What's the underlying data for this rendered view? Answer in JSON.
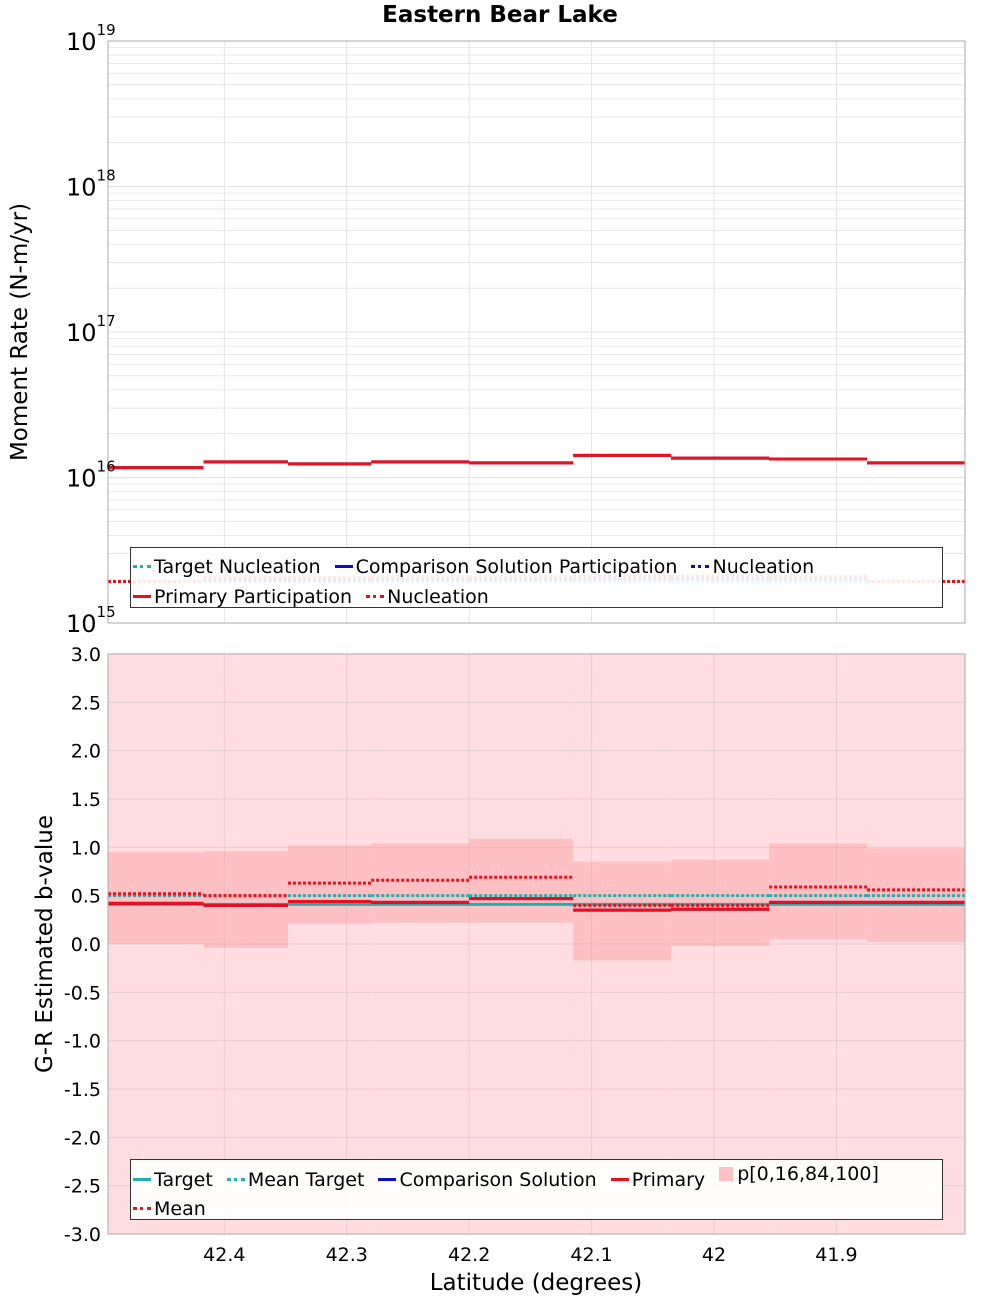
{
  "title": "Eastern Bear Lake",
  "xlabel": "Latitude (degrees)",
  "chart_data": [
    {
      "type": "line",
      "title": "Eastern Bear Lake",
      "ylabel": "Moment Rate (N-m/yr)",
      "yscale": "log",
      "ylim": [
        1000000000000000.0,
        1e+19
      ],
      "xlim": [
        42.495,
        41.795
      ],
      "x_reversed": true,
      "x_ticks": [
        42.4,
        42.3,
        42.2,
        42.1,
        42,
        41.9
      ],
      "y_tick_labels": [
        "15",
        "16",
        "17",
        "18",
        "19"
      ],
      "grid": true,
      "legend_position": "bottom",
      "bin_edges": [
        42.495,
        42.417,
        42.348,
        42.28,
        42.2,
        42.115,
        42.035,
        41.955,
        41.875,
        41.795
      ],
      "series": [
        {
          "name": "Target Nucleation",
          "style": "dotted",
          "color": "#20b0b0",
          "values": [
            1930000000000000.0,
            1930000000000000.0,
            1930000000000000.0,
            1930000000000000.0,
            1930000000000000.0,
            1930000000000000.0,
            1930000000000000.0,
            1930000000000000.0,
            1930000000000000.0
          ]
        },
        {
          "name": "Comparison Solution Participation",
          "style": "solid",
          "color": "#1010c8",
          "values": [
            1.17e+16,
            1.28e+16,
            1.24e+16,
            1.28e+16,
            1.26e+16,
            1.42e+16,
            1.36e+16,
            1.34e+16,
            1.26e+16
          ]
        },
        {
          "name": "Nucleation",
          "style": "dotted",
          "color": "#101090",
          "values": [
            1930000000000000.0,
            1980000000000000.0,
            1980000000000000.0,
            2000000000000000.0,
            2000000000000000.0,
            2020000000000000.0,
            2020000000000000.0,
            2020000000000000.0,
            1930000000000000.0
          ]
        },
        {
          "name": "Primary Participation",
          "style": "solid",
          "color": "#e8101c",
          "values": [
            1.17e+16,
            1.28e+16,
            1.24e+16,
            1.28e+16,
            1.26e+16,
            1.42e+16,
            1.36e+16,
            1.34e+16,
            1.26e+16
          ]
        },
        {
          "name": "Nucleation",
          "style": "dotted",
          "color": "#e8101c",
          "values": [
            1930000000000000.0,
            2050000000000000.0,
            2050000000000000.0,
            2080000000000000.0,
            2080000000000000.0,
            2100000000000000.0,
            2100000000000000.0,
            2080000000000000.0,
            1930000000000000.0
          ]
        }
      ]
    },
    {
      "type": "line",
      "ylabel": "G-R Estimated b-value",
      "ylim": [
        -3.0,
        3.0
      ],
      "xlim": [
        42.495,
        41.795
      ],
      "x_reversed": true,
      "x_ticks": [
        42.4,
        42.3,
        42.2,
        42.1,
        42,
        41.9
      ],
      "x_tick_labels": [
        "42.4",
        "42.3",
        "42.2",
        "42.1",
        "42",
        "41.9"
      ],
      "y_tick_labels": [
        "3.0",
        "2.5",
        "2.0",
        "1.5",
        "1.0",
        "0.5",
        "0.0",
        "-0.5",
        "-1.0",
        "-1.5",
        "-2.0",
        "-2.5",
        "-3.0"
      ],
      "grid": true,
      "legend_position": "bottom",
      "bin_edges": [
        42.495,
        42.417,
        42.348,
        42.28,
        42.2,
        42.115,
        42.035,
        41.955,
        41.875,
        41.795
      ],
      "bands": {
        "name": "p[0,16,84,100]",
        "color": "#ffc0c4",
        "p0": [
          -3.0,
          -3.0,
          -3.0,
          -3.0,
          -3.0,
          -3.0,
          -3.0,
          -3.0,
          -3.0
        ],
        "p16": [
          0.0,
          -0.04,
          0.21,
          0.22,
          0.22,
          -0.17,
          -0.02,
          0.05,
          0.02
        ],
        "p84": [
          0.95,
          0.96,
          1.02,
          1.04,
          1.09,
          0.85,
          0.87,
          1.04,
          0.99
        ],
        "p100": [
          3.0,
          3.0,
          3.0,
          3.0,
          3.0,
          3.0,
          3.0,
          3.0,
          3.0
        ]
      },
      "series": [
        {
          "name": "Target",
          "style": "solid",
          "color": "#20b0b0",
          "values": [
            0.41,
            0.41,
            0.41,
            0.41,
            0.41,
            0.41,
            0.41,
            0.41,
            0.41
          ]
        },
        {
          "name": "Mean Target",
          "style": "dotted",
          "color": "#20b0b0",
          "values": [
            0.5,
            0.5,
            0.5,
            0.5,
            0.5,
            0.5,
            0.5,
            0.5,
            0.5
          ]
        },
        {
          "name": "Comparison Solution",
          "style": "solid",
          "color": "#1010c8",
          "values": [
            0.42,
            0.4,
            0.44,
            0.43,
            0.47,
            0.35,
            0.36,
            0.43,
            0.43
          ]
        },
        {
          "name": "Primary",
          "style": "solid",
          "color": "#e8101c",
          "values": [
            0.42,
            0.4,
            0.44,
            0.43,
            0.47,
            0.35,
            0.36,
            0.43,
            0.43
          ]
        },
        {
          "name": "Mean",
          "style": "dotted",
          "color": "#e8101c",
          "values": [
            0.52,
            0.5,
            0.63,
            0.66,
            0.69,
            0.4,
            0.4,
            0.59,
            0.56
          ]
        }
      ]
    }
  ],
  "legend1": {
    "row1": [
      "Target Nucleation",
      "Comparison Solution Participation",
      "Nucleation"
    ],
    "row2": [
      "Primary Participation",
      "Nucleation"
    ]
  },
  "legend2": {
    "row1": [
      "Target",
      "Mean Target",
      "Comparison Solution",
      "Primary",
      "p[0,16,84,100]"
    ],
    "row2": [
      "Mean"
    ]
  },
  "colors": {
    "target": "#20b0b0",
    "comparison": "#1010c8",
    "comparison_nucleation": "#101090",
    "primary": "#e8101c",
    "band": "#ffc0c4",
    "band_outer": "#ffdde0",
    "grid": "#e3e3e3"
  }
}
